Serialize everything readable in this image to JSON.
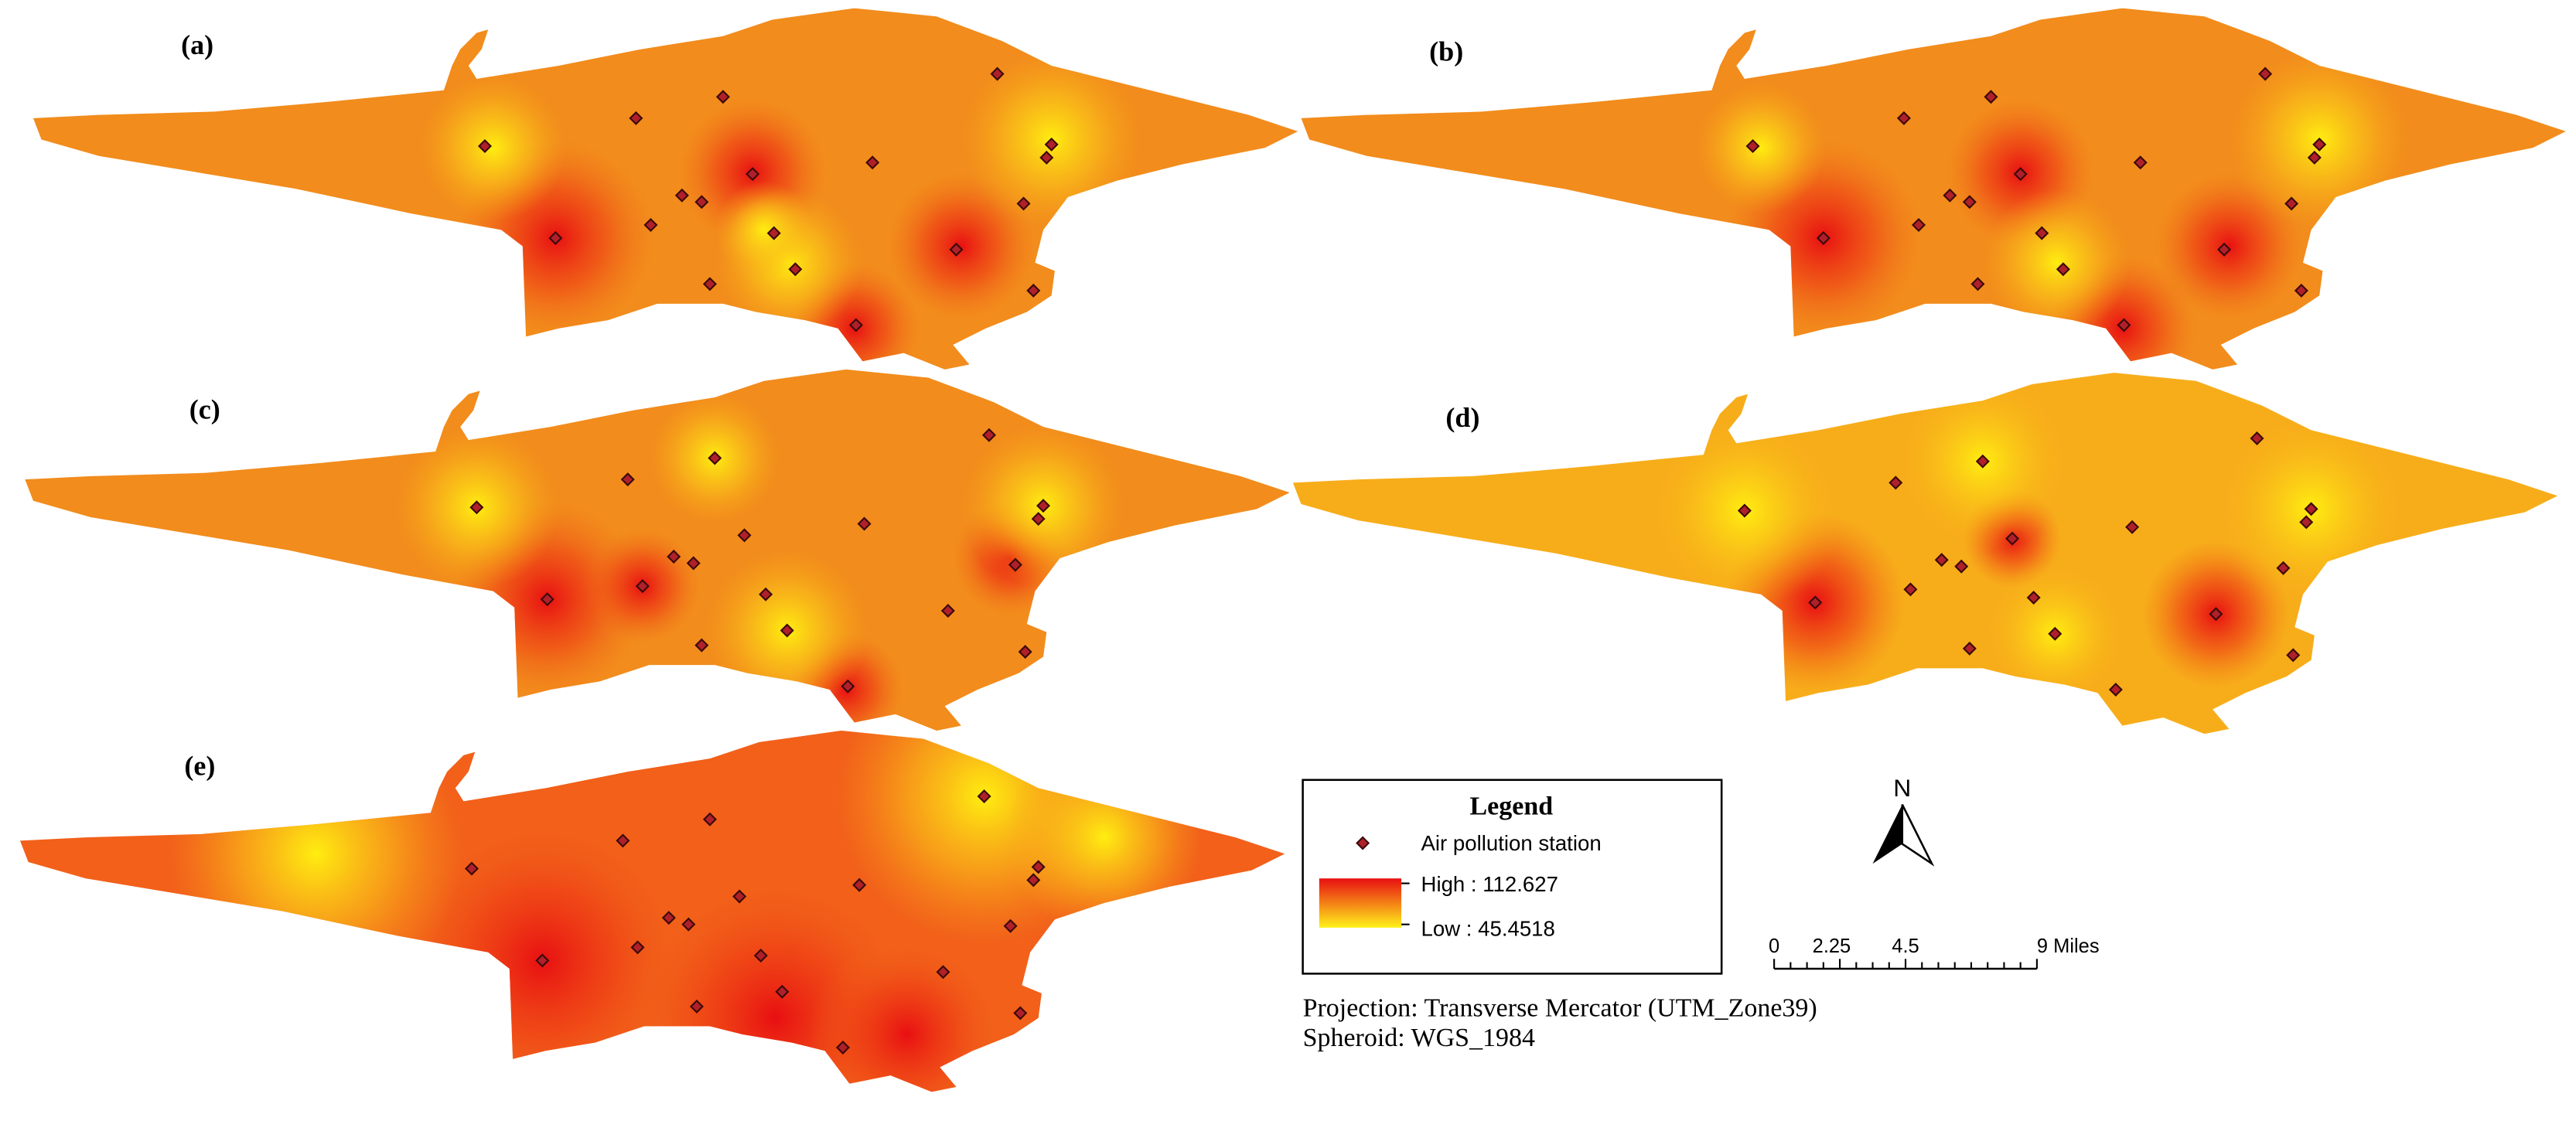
{
  "panels": [
    {
      "label": "(a)"
    },
    {
      "label": "(b)"
    },
    {
      "label": "(c)"
    },
    {
      "label": "(d)"
    },
    {
      "label": "(e)"
    }
  ],
  "legend": {
    "title": "Legend",
    "station": "Air pollution station",
    "high": "High : 112.627",
    "low": "Low : 45.4518"
  },
  "north": "N",
  "scale_bar": {
    "ticks": [
      "0",
      "2.25",
      "4.5",
      "9 Miles"
    ]
  },
  "projection": [
    "Projection: Transverse Mercator (UTM_Zone39)",
    "Spheroid: WGS_1984"
  ]
}
